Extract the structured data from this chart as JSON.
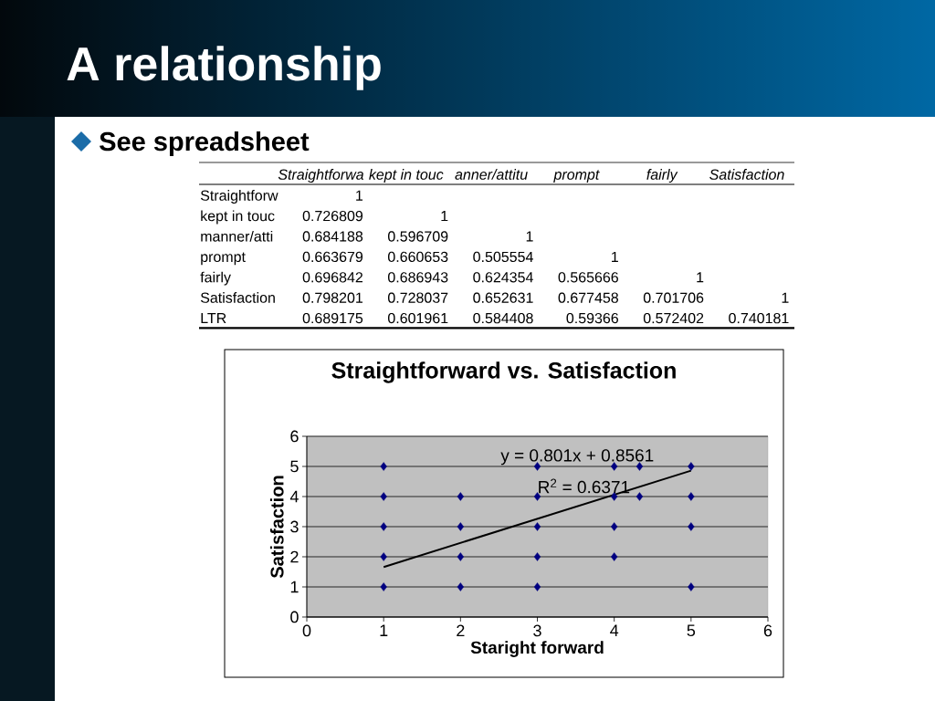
{
  "chart_data": [
    {
      "type": "other",
      "title": "A relationship",
      "subtitle": "See spreadsheet",
      "categories": [
        "Straightforwa",
        "kept in touc",
        "anner/attitu",
        "prompt",
        "fairly",
        "Satisfaction"
      ],
      "y_categories": [
        "Straightforw",
        "kept in touc",
        "manner/atti",
        "prompt",
        "fairly",
        "Satisfaction",
        "LTR"
      ],
      "cell_labels": [
        [
          "1",
          null,
          null,
          null,
          null,
          null
        ],
        [
          "0.726809",
          "1",
          null,
          null,
          null,
          null
        ],
        [
          "0.684188",
          "0.596709",
          "1",
          null,
          null,
          null
        ],
        [
          "0.663679",
          "0.660653",
          "0.505554",
          "1",
          null,
          null
        ],
        [
          "0.696842",
          "0.686943",
          "0.624354",
          "0.565666",
          "1",
          null
        ],
        [
          "0.798201",
          "0.728037",
          "0.652631",
          "0.677458",
          "0.701706",
          "1"
        ],
        [
          "0.689175",
          "0.601961",
          "0.584408",
          "0.59366",
          "0.572402",
          "0.740181"
        ]
      ]
    },
    {
      "type": "scatter",
      "title": "Straightforward vs. Satisfaction",
      "xlabel": "Staright forward",
      "ylabel": "Satisfaction",
      "xlim": [
        0,
        6
      ],
      "ylim": [
        0,
        6
      ],
      "xticks": [
        0,
        1,
        2,
        3,
        4,
        5,
        6
      ],
      "yticks": [
        0,
        1,
        2,
        3,
        4,
        5,
        6
      ],
      "grid": "y",
      "annotations": [
        "y = 0.801x + 0.8561",
        "R$^{2}$ = 0.6371"
      ],
      "series": [
        {
          "type": "scatter",
          "color": "#000080",
          "marker": "diamond",
          "x": [
            1,
            1,
            1,
            1,
            1,
            2,
            2,
            2,
            2,
            3,
            3,
            3,
            3,
            3,
            4,
            4,
            4,
            4,
            4.33,
            4.33,
            5,
            5,
            5,
            5
          ],
          "values": [
            1,
            2,
            3,
            4,
            5,
            1,
            2,
            3,
            4,
            1,
            2,
            3,
            4,
            5,
            2,
            3,
            4,
            5,
            4,
            5,
            1,
            3,
            4,
            5
          ]
        },
        {
          "type": "line",
          "color": "#000000",
          "marker": "none",
          "line_style": "solid",
          "x": [
            1,
            5
          ],
          "values": [
            1.66,
            4.86
          ]
        }
      ]
    }
  ]
}
